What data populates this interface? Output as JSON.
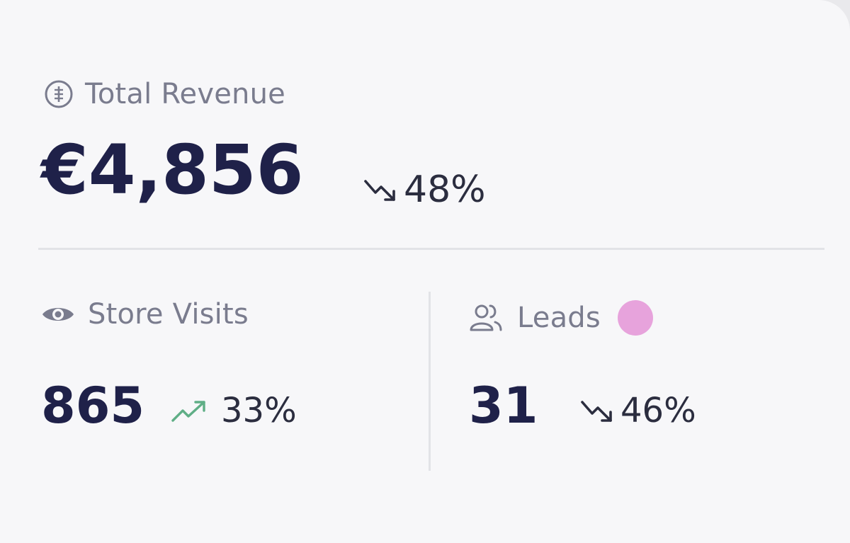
{
  "revenue": {
    "label": "Total Revenue",
    "value": "€4,856",
    "change": "48%",
    "trend": "down",
    "icon": "money-icon"
  },
  "visits": {
    "label": "Store Visits",
    "value": "865",
    "change": "33%",
    "trend": "up",
    "icon": "eye-icon"
  },
  "leads": {
    "label": "Leads",
    "value": "31",
    "change": "46%",
    "trend": "down",
    "icon": "users-icon",
    "indicator_color": "#e7a3dc"
  },
  "colors": {
    "value_text": "#1f2149",
    "label_text": "#7a7c8e",
    "trend_up": "#5fae86",
    "trend_down": "#2b2d3f"
  }
}
